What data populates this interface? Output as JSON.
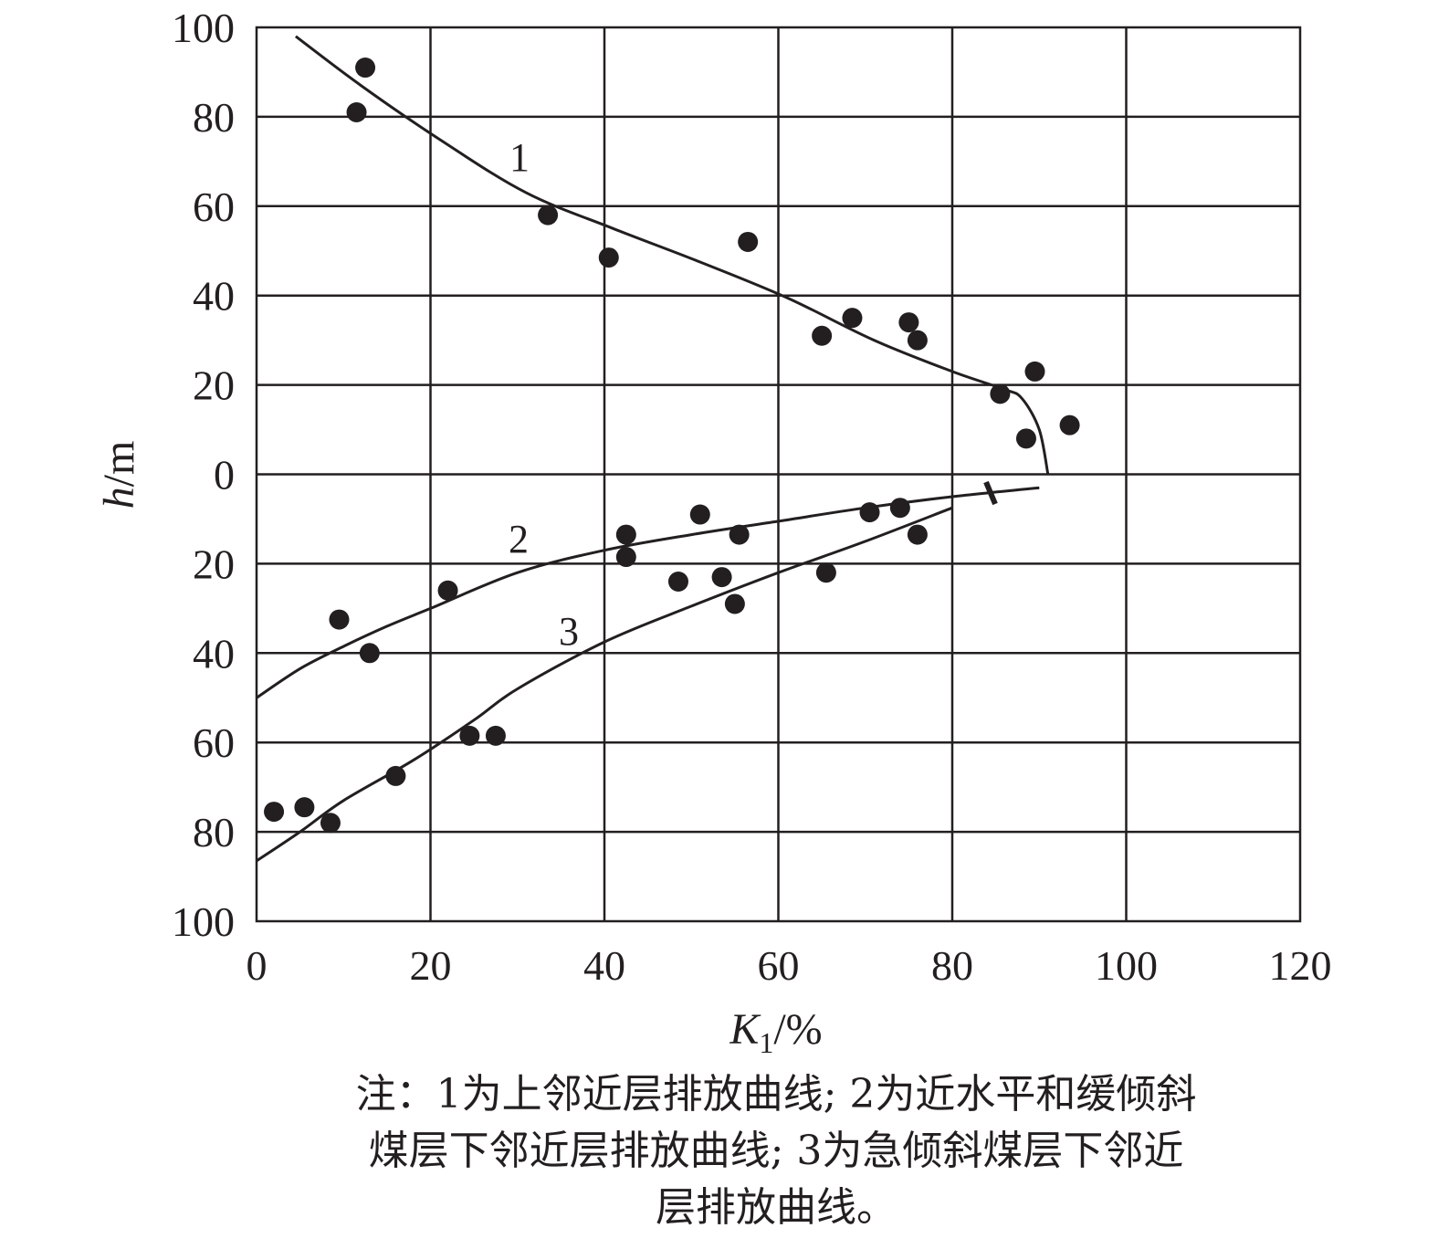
{
  "chart_data": {
    "type": "scatter",
    "title": "",
    "xlabel": "K",
    "xlabel_sub": "1",
    "xlabel_unit": "/%",
    "ylabel": "h",
    "ylabel_unit": "/m",
    "xlim": [
      0,
      120
    ],
    "ylim": [
      -100,
      100
    ],
    "x_ticks": [
      0,
      20,
      40,
      60,
      80,
      100,
      120
    ],
    "x_tick_labels": [
      "0",
      "20",
      "40",
      "60",
      "80",
      "100",
      "120"
    ],
    "y_ticks": [
      100,
      80,
      60,
      40,
      20,
      0,
      -20,
      -40,
      -60,
      -80,
      -100
    ],
    "y_tick_labels": [
      "100",
      "80",
      "60",
      "40",
      "20",
      "0",
      "20",
      "40",
      "60",
      "80",
      "100"
    ],
    "grid": true,
    "points": [
      {
        "x": 12.5,
        "y": 91
      },
      {
        "x": 11.5,
        "y": 81
      },
      {
        "x": 33.5,
        "y": 58
      },
      {
        "x": 40.5,
        "y": 48.5
      },
      {
        "x": 56.5,
        "y": 52
      },
      {
        "x": 65,
        "y": 31
      },
      {
        "x": 68.5,
        "y": 35
      },
      {
        "x": 75,
        "y": 34
      },
      {
        "x": 76,
        "y": 30
      },
      {
        "x": 85.5,
        "y": 18
      },
      {
        "x": 89.5,
        "y": 23
      },
      {
        "x": 93.5,
        "y": 11
      },
      {
        "x": 88.5,
        "y": 8
      },
      {
        "x": 51,
        "y": -9
      },
      {
        "x": 70.5,
        "y": -8.5
      },
      {
        "x": 74,
        "y": -7.5
      },
      {
        "x": 76,
        "y": -13.5
      },
      {
        "x": 42.5,
        "y": -13.5
      },
      {
        "x": 42.5,
        "y": -18.5
      },
      {
        "x": 55.5,
        "y": -13.5
      },
      {
        "x": 48.5,
        "y": -24
      },
      {
        "x": 53.5,
        "y": -23
      },
      {
        "x": 55,
        "y": -29
      },
      {
        "x": 65.5,
        "y": -22
      },
      {
        "x": 22,
        "y": -26
      },
      {
        "x": 9.5,
        "y": -32.5
      },
      {
        "x": 13,
        "y": -40
      },
      {
        "x": 24.5,
        "y": -58.5
      },
      {
        "x": 27.5,
        "y": -58.5
      },
      {
        "x": 16,
        "y": -67.5
      },
      {
        "x": 2,
        "y": -75.5
      },
      {
        "x": 5.5,
        "y": -74.5
      },
      {
        "x": 8.5,
        "y": -78
      }
    ],
    "series": [
      {
        "name": "1",
        "points": [
          [
            4.5,
            98
          ],
          [
            12,
            87
          ],
          [
            21,
            75
          ],
          [
            31,
            63
          ],
          [
            41,
            55
          ],
          [
            51,
            47.5
          ],
          [
            61,
            39.5
          ],
          [
            71,
            30
          ],
          [
            80,
            23
          ],
          [
            86,
            19
          ],
          [
            88,
            17
          ],
          [
            90,
            10
          ],
          [
            91,
            0
          ]
        ]
      },
      {
        "name": "2",
        "points": [
          [
            0,
            -50
          ],
          [
            5,
            -43.5
          ],
          [
            10,
            -38.5
          ],
          [
            15,
            -34
          ],
          [
            20,
            -30
          ],
          [
            30,
            -22
          ],
          [
            40,
            -17
          ],
          [
            50,
            -13.5
          ],
          [
            60,
            -10.5
          ],
          [
            70,
            -7.5
          ],
          [
            80,
            -5
          ],
          [
            90,
            -3
          ]
        ]
      },
      {
        "name": "3",
        "points": [
          [
            0,
            -86.5
          ],
          [
            5,
            -80
          ],
          [
            10,
            -73
          ],
          [
            18,
            -64
          ],
          [
            25,
            -55
          ],
          [
            30,
            -48
          ],
          [
            40,
            -37.5
          ],
          [
            50,
            -29.5
          ],
          [
            60,
            -22
          ],
          [
            70,
            -15
          ],
          [
            80,
            -7.5
          ]
        ]
      }
    ]
  },
  "note": {
    "lines": [
      "注：1为上邻近层排放曲线; 2为近水平和缓倾斜",
      "煤层下邻近层排放曲线; 3为急倾斜煤层下邻近",
      "层排放曲线。"
    ]
  }
}
